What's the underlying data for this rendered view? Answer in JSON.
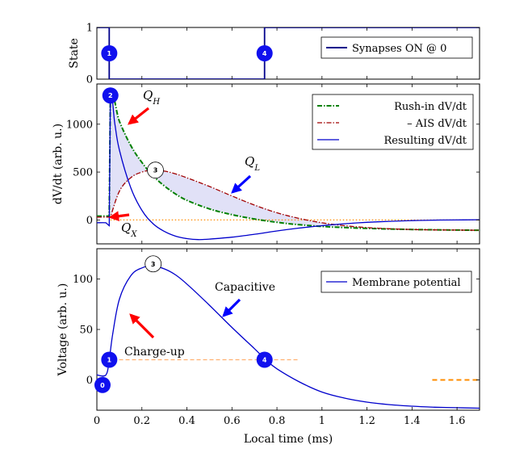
{
  "chart_data": [
    {
      "type": "line",
      "ylabel": "State",
      "yticks": [
        0,
        1
      ],
      "ylim": [
        0,
        1
      ],
      "xlim": [
        0,
        1.7
      ],
      "series": [
        {
          "name": "Synapses ON @ 0",
          "color": "#00008b",
          "x": [
            0,
            0.055,
            0.055,
            0.745,
            0.745,
            1.7
          ],
          "y": [
            1,
            1,
            0,
            0,
            1,
            1
          ]
        }
      ],
      "markers": [
        {
          "label": "1",
          "x": 0.055,
          "y": 0.5,
          "style": "filled"
        },
        {
          "label": "4",
          "x": 0.745,
          "y": 0.5,
          "style": "filled"
        }
      ],
      "legend": {
        "position": "top-right",
        "entries": [
          "Synapses ON @ 0"
        ]
      }
    },
    {
      "type": "line",
      "ylabel": "dV/dt (arb. u.)",
      "yticks": [
        0,
        500,
        1000
      ],
      "ylim": [
        -250,
        1420
      ],
      "xlim": [
        0,
        1.7
      ],
      "series": [
        {
          "name": "Rush-in dV/dt",
          "color": "#008000",
          "dash": "dashdot",
          "x": [
            0,
            0.05,
            0.055,
            0.06,
            0.1,
            0.15,
            0.2,
            0.25,
            0.3,
            0.35,
            0.4,
            0.5,
            0.6,
            0.7,
            0.8,
            0.9,
            1.0,
            1.1,
            1.2,
            1.3,
            1.4,
            1.5,
            1.6,
            1.7
          ],
          "y": [
            40,
            40,
            40,
            1300,
            1030,
            780,
            600,
            460,
            355,
            270,
            205,
            115,
            55,
            10,
            -25,
            -50,
            -68,
            -80,
            -88,
            -95,
            -100,
            -103,
            -106,
            -108
          ]
        },
        {
          "name": "– AIS dV/dt",
          "color": "#a00000",
          "dash": "dashdot",
          "x": [
            0,
            0.05,
            0.055,
            0.06,
            0.1,
            0.15,
            0.2,
            0.25,
            0.3,
            0.35,
            0.4,
            0.5,
            0.6,
            0.7,
            0.8,
            0.9,
            1.0,
            1.1,
            1.2,
            1.3,
            1.4,
            1.5,
            1.6,
            1.7
          ],
          "y": [
            30,
            30,
            30,
            30,
            300,
            440,
            500,
            520,
            510,
            480,
            440,
            350,
            250,
            155,
            75,
            15,
            -30,
            -60,
            -80,
            -92,
            -100,
            -104,
            -106,
            -108
          ]
        },
        {
          "name": "Resulting dV/dt",
          "color": "#0000cc",
          "x": [
            0,
            0.04,
            0.05,
            0.055,
            0.06,
            0.08,
            0.1,
            0.15,
            0.2,
            0.25,
            0.3,
            0.35,
            0.4,
            0.45,
            0.5,
            0.6,
            0.7,
            0.8,
            0.9,
            1.0,
            1.1,
            1.2,
            1.3,
            1.4,
            1.5,
            1.6,
            1.7
          ],
          "y": [
            -30,
            -30,
            -50,
            -60,
            1300,
            1000,
            730,
            340,
            100,
            -40,
            -120,
            -170,
            -195,
            -205,
            -200,
            -180,
            -150,
            -115,
            -85,
            -60,
            -40,
            -25,
            -15,
            -7,
            -2,
            0,
            2
          ]
        }
      ],
      "reference_line": {
        "y": 0,
        "color": "#ff8c00",
        "style": "dotted"
      },
      "markers": [
        {
          "label": "2",
          "x": 0.06,
          "y": 1300,
          "style": "filled"
        },
        {
          "label": "3",
          "x": 0.26,
          "y": 520,
          "style": "open"
        }
      ],
      "annotations": [
        {
          "text": "Q",
          "sub": "H",
          "arrow_color": "#ff0000"
        },
        {
          "text": "Q",
          "sub": "L",
          "arrow_color": "#0000ff"
        },
        {
          "text": "Q",
          "sub": "X",
          "arrow_color": "#ff0000"
        }
      ],
      "legend": {
        "position": "top-right",
        "entries": [
          "Rush-in dV/dt",
          "– AIS dV/dt",
          "Resulting dV/dt"
        ]
      }
    },
    {
      "type": "line",
      "xlabel": "Local time (ms)",
      "ylabel": "Voltage (arb. u.)",
      "xticks": [
        0,
        0.2,
        0.4,
        0.6,
        0.8,
        1,
        1.2,
        1.4,
        1.6
      ],
      "yticks": [
        0,
        50,
        100
      ],
      "ylim": [
        -30,
        130
      ],
      "xlim": [
        0,
        1.7
      ],
      "series": [
        {
          "name": "Membrane potential",
          "color": "#0000cc",
          "x": [
            0,
            0.04,
            0.055,
            0.07,
            0.1,
            0.15,
            0.2,
            0.25,
            0.3,
            0.35,
            0.4,
            0.5,
            0.6,
            0.7,
            0.75,
            0.8,
            0.9,
            1.0,
            1.1,
            1.2,
            1.3,
            1.4,
            1.5,
            1.6,
            1.7
          ],
          "y": [
            5,
            5,
            20,
            45,
            80,
            103,
            111,
            113,
            110,
            104,
            95,
            74,
            52,
            31,
            20,
            11,
            -2,
            -12,
            -18,
            -22,
            -24.5,
            -26,
            -27,
            -27.5,
            -28
          ]
        }
      ],
      "reference_lines": [
        {
          "y": 20,
          "x_from": 0.07,
          "x_to": 0.9,
          "color": "#ffb070",
          "style": "dashed"
        },
        {
          "y": 0,
          "x_from": 1.49,
          "x_to": 1.7,
          "color": "#ff8c00",
          "style": "dashed"
        }
      ],
      "markers": [
        {
          "label": "0",
          "x": 0.025,
          "y": -5,
          "style": "filled"
        },
        {
          "label": "1",
          "x": 0.055,
          "y": 20,
          "style": "filled"
        },
        {
          "label": "3",
          "x": 0.25,
          "y": 115,
          "style": "open"
        },
        {
          "label": "4",
          "x": 0.745,
          "y": 20,
          "style": "filled"
        }
      ],
      "annotations": [
        {
          "text": "Charge-up",
          "arrow_color": "#ff0000"
        },
        {
          "text": "Capacitive",
          "arrow_color": "#0000ff"
        }
      ],
      "legend": {
        "position": "top-right",
        "entries": [
          "Membrane potential"
        ]
      }
    }
  ]
}
